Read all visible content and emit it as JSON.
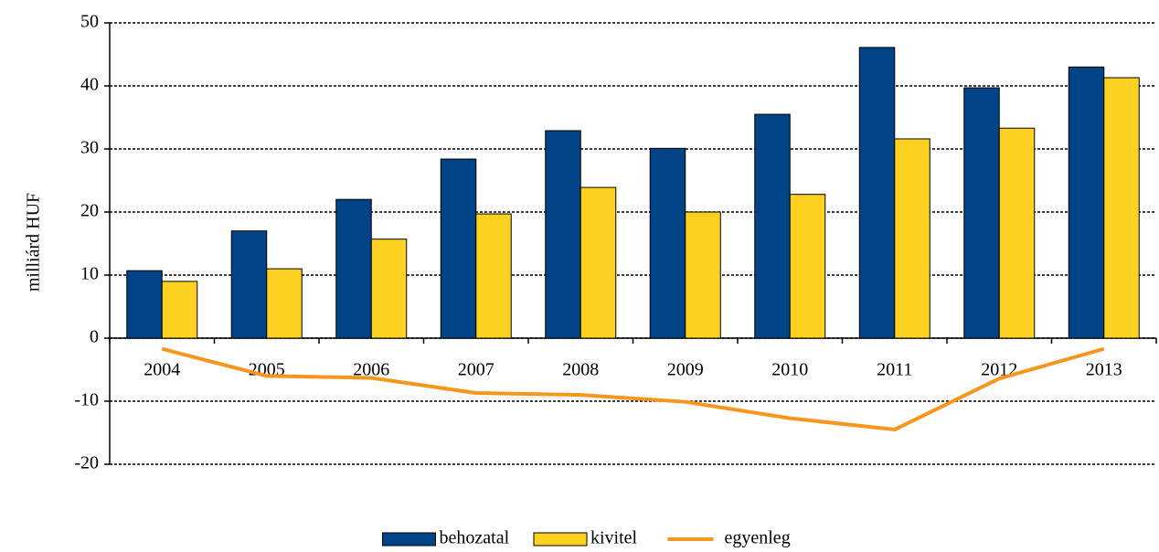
{
  "chart_data": {
    "type": "bar",
    "ylabel": "milliárd HUF",
    "categories": [
      "2004",
      "2005",
      "2006",
      "2007",
      "2008",
      "2009",
      "2010",
      "2011",
      "2012",
      "2013"
    ],
    "series": [
      {
        "name": "behozatal",
        "type": "bar",
        "color": "#004387",
        "values": [
          10.7,
          17.0,
          22.0,
          28.4,
          32.9,
          30.1,
          35.5,
          46.1,
          39.7,
          43.0
        ]
      },
      {
        "name": "kivitel",
        "type": "bar",
        "color": "#fdd122",
        "values": [
          9.0,
          11.0,
          15.7,
          19.7,
          23.9,
          20.0,
          22.8,
          31.6,
          33.3,
          41.3
        ]
      },
      {
        "name": "egyenleg",
        "type": "line",
        "color": "#f7961d",
        "values": [
          -1.7,
          -6.0,
          -6.3,
          -8.7,
          -9.0,
          -10.1,
          -12.7,
          -14.5,
          -6.4,
          -1.7
        ]
      }
    ],
    "ylim": [
      -20,
      50
    ],
    "yticks": [
      -20,
      -10,
      0,
      10,
      20,
      30,
      40,
      50
    ],
    "grid": true,
    "legend": "bottom"
  }
}
